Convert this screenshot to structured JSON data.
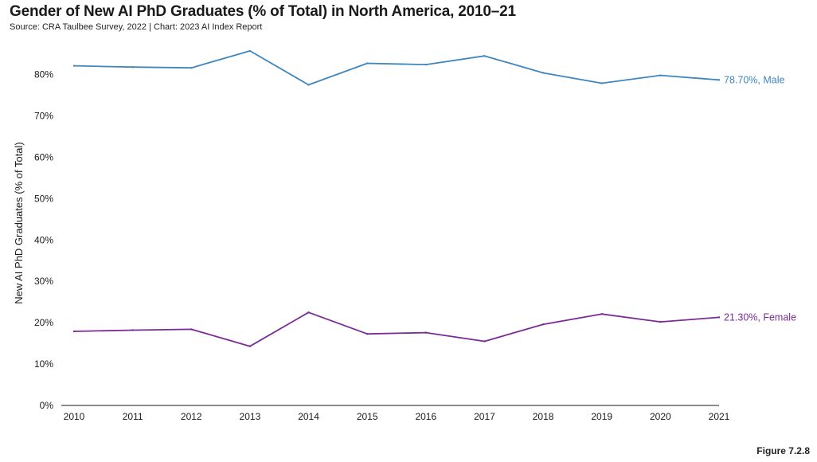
{
  "title": "Gender of New AI PhD Graduates (% of Total) in North America, 2010–21",
  "subtitle": "Source: CRA Taulbee Survey, 2022 | Chart: 2023 AI Index Report",
  "figure_label": "Figure 7.2.8",
  "chart_data": {
    "type": "line",
    "title": "Gender of New AI PhD Graduates (% of Total) in North America, 2010–21",
    "xlabel": "",
    "ylabel": "New AI PhD Graduates (% of Total)",
    "ylim": [
      0,
      88
    ],
    "yticks": [
      0,
      10,
      20,
      30,
      40,
      50,
      60,
      70,
      80
    ],
    "ytick_labels": [
      "0%",
      "10%",
      "20%",
      "30%",
      "40%",
      "50%",
      "60%",
      "70%",
      "80%"
    ],
    "x": [
      "2010",
      "2011",
      "2012",
      "2013",
      "2014",
      "2015",
      "2016",
      "2017",
      "2018",
      "2019",
      "2020",
      "2021"
    ],
    "grid": false,
    "legend": "end-of-line labels",
    "series": [
      {
        "name": "Male",
        "color": "#3f86bf",
        "values": [
          82.1,
          81.8,
          81.6,
          85.7,
          77.5,
          82.7,
          82.4,
          84.5,
          80.4,
          77.9,
          79.8,
          78.7
        ],
        "end_label": "78.70%, Male"
      },
      {
        "name": "Female",
        "color": "#7a2b96",
        "values": [
          17.9,
          18.2,
          18.4,
          14.3,
          22.5,
          17.3,
          17.6,
          15.5,
          19.6,
          22.1,
          20.2,
          21.3
        ],
        "end_label": "21.30%, Female"
      }
    ]
  }
}
